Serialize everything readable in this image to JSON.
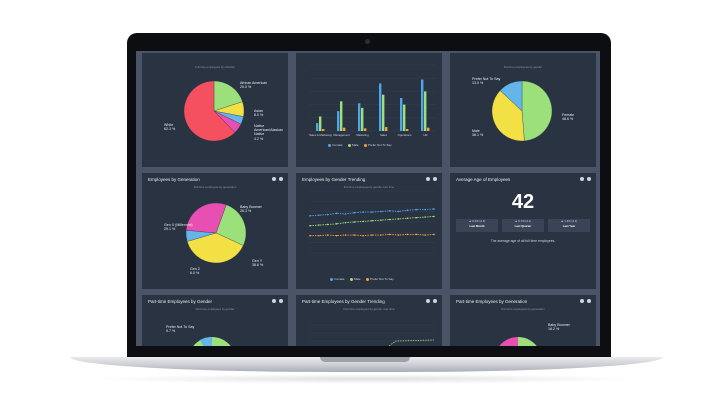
{
  "panels": {
    "p1": {
      "subtitle": "Full time employees by ethnicity",
      "chart_data": {
        "type": "pie",
        "slices": [
          {
            "name": "African American",
            "value": 20.0,
            "label": "20.0 %",
            "color": "#9be07a"
          },
          {
            "name": "Asian",
            "value": 8.0,
            "label": "8.0 %",
            "color": "#f2e045"
          },
          {
            "name": "Native American/Alaskan Native",
            "value": 4.2,
            "label": "4.2 %",
            "color": "#63b5ea"
          },
          {
            "name": "Other",
            "value": 5.5,
            "label": "",
            "color": "#e84fb3"
          },
          {
            "name": "White",
            "value": 62.3,
            "label": "62.3 %",
            "color": "#f4505f"
          }
        ]
      }
    },
    "p2": {
      "chart_data": {
        "type": "bar",
        "categories": [
          "Sales & Marketing",
          "Management",
          "Marketing",
          "Sales",
          "Operations",
          "HR"
        ],
        "series": [
          {
            "name": "Female",
            "color": "#4ea6e8",
            "values": [
              12,
              30,
              42,
              72,
              50,
              78
            ]
          },
          {
            "name": "Male",
            "color": "#9be07a",
            "values": [
              22,
              45,
              35,
              55,
              40,
              60
            ]
          },
          {
            "name": "Prefer Not To Say",
            "color": "#f2a43a",
            "values": [
              3,
              5,
              4,
              6,
              3,
              5
            ]
          }
        ],
        "ylim": [
          0,
          100
        ]
      }
    },
    "p3": {
      "subtitle": "Full time employees by gender",
      "chart_data": {
        "type": "pie",
        "slices": [
          {
            "name": "Female",
            "value": 48.6,
            "label": "48.6 %",
            "color": "#9be07a"
          },
          {
            "name": "Male",
            "value": 38.1,
            "label": "38.1 %",
            "color": "#f2e045"
          },
          {
            "name": "Prefer Not To Say",
            "value": 13.0,
            "label": "13.0 %",
            "color": "#63b5ea"
          }
        ]
      }
    },
    "p4": {
      "title": "Employees by Generation",
      "subtitle": "Full time employees by generation",
      "chart_data": {
        "type": "pie",
        "slices": [
          {
            "name": "Baby Boomer",
            "value": 26.3,
            "label": "26.3 %",
            "color": "#9be07a"
          },
          {
            "name": "Gen Y",
            "value": 38.6,
            "label": "38.6 %",
            "color": "#f2e045"
          },
          {
            "name": "Gen Z",
            "value": 6.0,
            "label": "6.0 %",
            "color": "#63b5ea"
          },
          {
            "name": "Gen X (Millennial)",
            "value": 29.1,
            "label": "29.1 %",
            "color": "#e84fb3"
          }
        ]
      }
    },
    "p5": {
      "title": "Employees by Gender Trending",
      "subtitle": "Full time employees by gender over time",
      "chart_data": {
        "type": "line",
        "ylim": [
          0,
          100
        ],
        "series": [
          {
            "name": "Female",
            "color": "#4ea6e8",
            "values": [
              60,
              61,
              62,
              64,
              63,
              65,
              66,
              66,
              67,
              68,
              67,
              69,
              70,
              70,
              71
            ]
          },
          {
            "name": "Male",
            "color": "#9be07a",
            "values": [
              44,
              45,
              46,
              47,
              49,
              50,
              51,
              52,
              53,
              54,
              55,
              56,
              57,
              58,
              59
            ]
          },
          {
            "name": "Prefer Not To Say",
            "color": "#f2a43a",
            "values": [
              28,
              28,
              29,
              28,
              29,
              29,
              28,
              29,
              29,
              30,
              29,
              30,
              30,
              29,
              30
            ]
          }
        ]
      }
    },
    "p6": {
      "title": "Average Age of Employees",
      "value": "42",
      "stats": [
        {
          "change": "▲ 0.2% (4.1)",
          "period": "Last Month"
        },
        {
          "change": "▲ 0.7% (4.1)",
          "period": "Last Quarter"
        },
        {
          "change": "▲ 1.4% (4.1)",
          "period": "Last Year"
        }
      ],
      "caption": "The average age of all full time employees."
    },
    "p7": {
      "title": "Part-time Employees by Gender",
      "subtitle": "Part time employees by gender",
      "prefer_label": "Prefer Not To Say",
      "prefer_pct": "9.7 %"
    },
    "p8": {
      "title": "Part-time Employees by Gender Trending",
      "subtitle": "Part time employees by gender over time"
    },
    "p9": {
      "title": "Part-time Employees by Generation",
      "subtitle": "Part time employees by generation",
      "bb_label": "Baby Boomer",
      "bb_pct": "18.2 %"
    }
  },
  "legend_trend": [
    "Female",
    "Male",
    "Prefer Not To Say"
  ]
}
